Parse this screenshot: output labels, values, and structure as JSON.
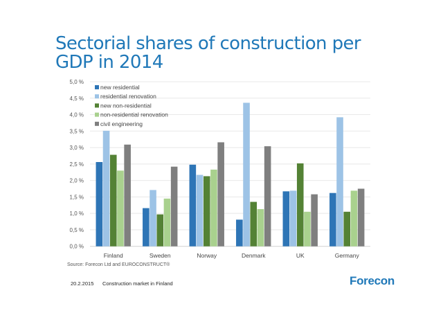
{
  "page": {
    "title": "Sectorial shares of construction per GDP in 2014",
    "source": "Source: Forecon Ltd and EUROCONSTRUCT®",
    "footer_date": "20.2.2015",
    "footer_text": "Construction market in Finland",
    "logo": "Forecon"
  },
  "chart_data": {
    "type": "bar",
    "title": "Sectorial shares of construction per GDP in 2014",
    "xlabel": "",
    "ylabel": "",
    "ylim": [
      0,
      5.0
    ],
    "yticks": [
      0.0,
      0.5,
      1.0,
      1.5,
      2.0,
      2.5,
      3.0,
      3.5,
      4.0,
      4.5,
      5.0
    ],
    "ytick_labels": [
      "0,0 %",
      "0,5 %",
      "1,0 %",
      "1,5 %",
      "2,0 %",
      "2,5 %",
      "3,0 %",
      "3,5 %",
      "4,0 %",
      "4,5 %",
      "5,0 %"
    ],
    "grid": true,
    "legend_position": "top-left",
    "categories": [
      "Finland",
      "Sweden",
      "Norway",
      "Denmark",
      "UK",
      "Germany"
    ],
    "series": [
      {
        "name": "new residential",
        "color": "#2e75b6",
        "values": [
          2.56,
          1.16,
          2.48,
          0.81,
          1.67,
          1.62
        ]
      },
      {
        "name": "residential renovation",
        "color": "#9dc3e6",
        "values": [
          3.51,
          1.71,
          2.17,
          4.36,
          1.69,
          3.92
        ]
      },
      {
        "name": "new non-residential",
        "color": "#548235",
        "values": [
          2.78,
          0.97,
          2.13,
          1.35,
          2.52,
          1.05
        ]
      },
      {
        "name": "non-residential renovation",
        "color": "#a9d18e",
        "values": [
          2.3,
          1.45,
          2.33,
          1.13,
          1.05,
          1.69
        ]
      },
      {
        "name": "civil engineering",
        "color": "#7f7f7f",
        "values": [
          3.09,
          2.42,
          3.16,
          3.04,
          1.58,
          1.75
        ]
      }
    ]
  }
}
